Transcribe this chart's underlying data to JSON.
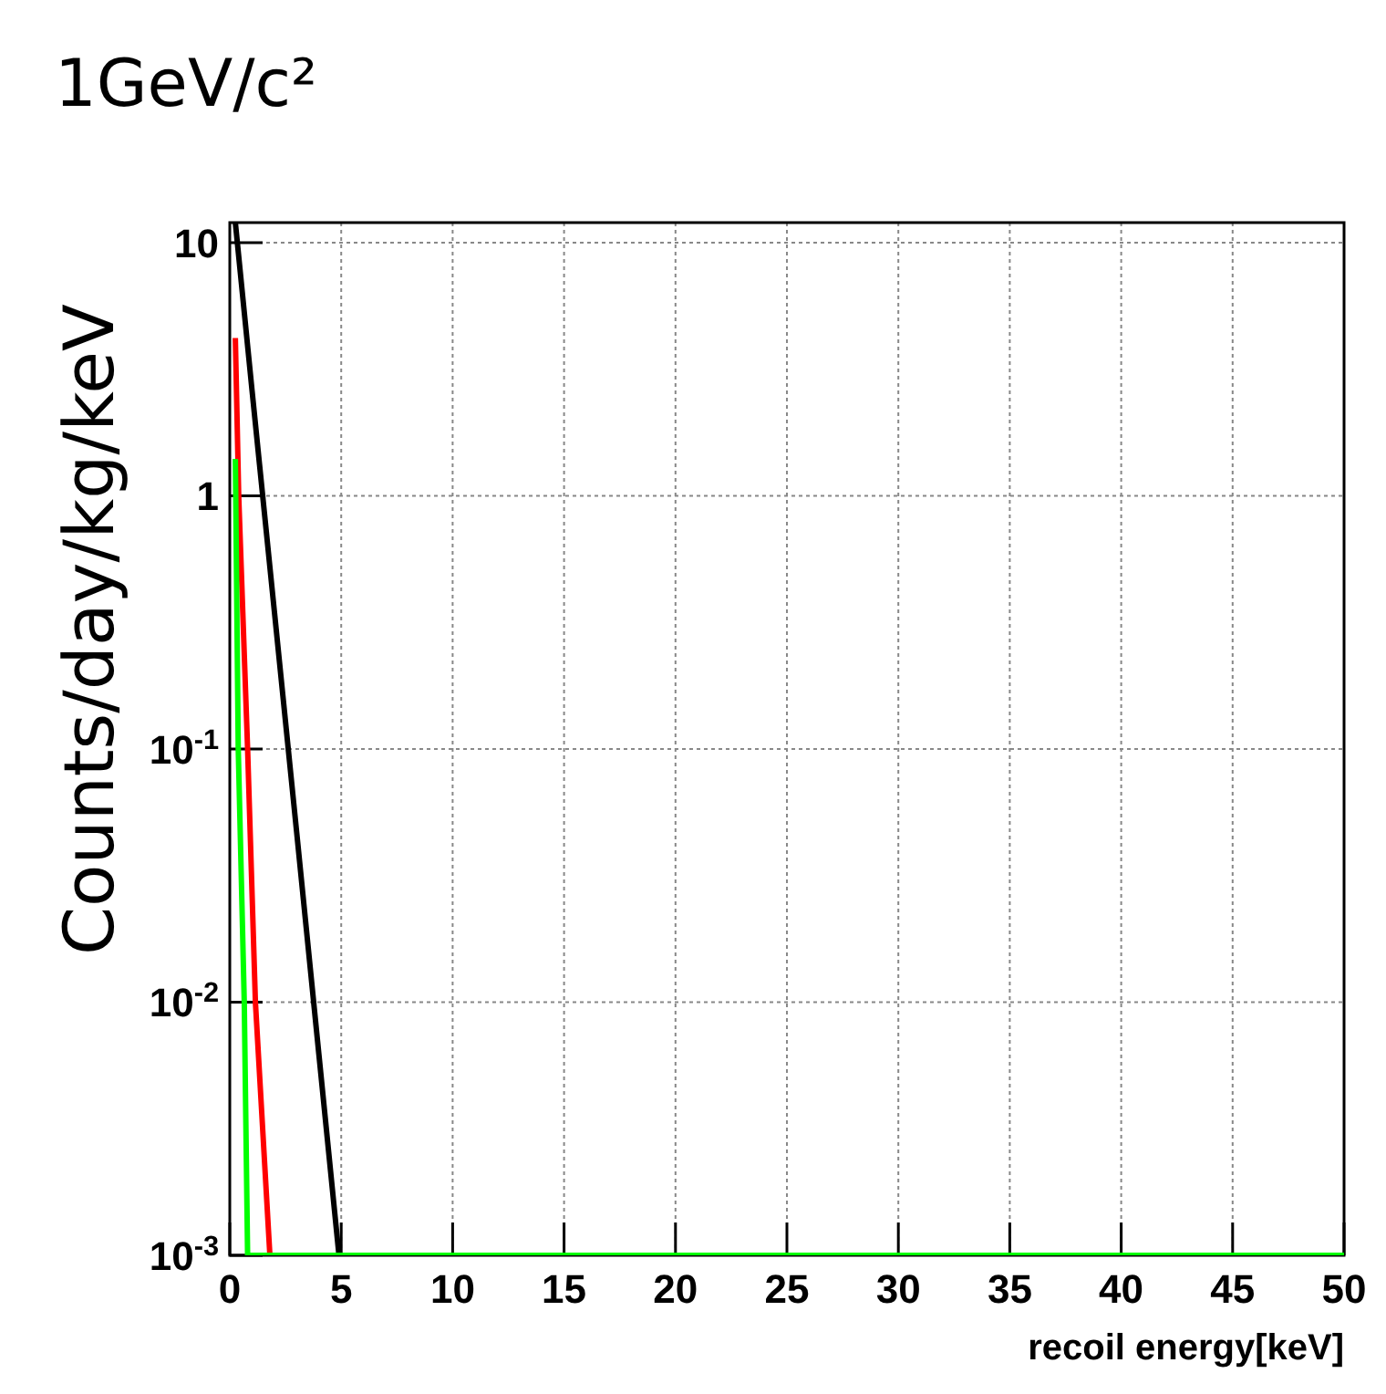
{
  "chart_data": {
    "type": "line",
    "title": "1GeV/c²",
    "xlabel": "recoil energy[keV]",
    "ylabel": "Counts/day/kg/keV",
    "log": "y",
    "grid": true,
    "marker": "none",
    "line_style": "solid",
    "xlim": [
      0,
      50
    ],
    "xticks": [
      0,
      5,
      10,
      15,
      20,
      25,
      30,
      35,
      40,
      45,
      50
    ],
    "ylim": [
      0.001,
      12
    ],
    "yticks": [
      {
        "value": 0.001,
        "label": "10$^{-3}$"
      },
      {
        "value": 0.01,
        "label": "10$^{-2}$"
      },
      {
        "value": 0.1,
        "label": "10$^{-1}$"
      },
      1,
      10
    ],
    "series": [
      {
        "color": "#000000",
        "x": [
          0.25,
          1,
          2,
          3,
          4,
          4.9
        ],
        "values": [
          12,
          2.6,
          0.35,
          0.047,
          0.0062,
          0.001
        ]
      },
      {
        "color": "#ff0000",
        "x": [
          0.25,
          0.4,
          0.8,
          1.15,
          1.8
        ],
        "values": [
          4.2,
          1,
          0.1,
          0.01,
          0.001
        ]
      },
      {
        "color": "#00ff00",
        "x": [
          0.25,
          0.38,
          0.65,
          0.8,
          50
        ],
        "values": [
          1.4,
          0.1,
          0.01,
          0.001,
          0.001
        ]
      }
    ]
  }
}
